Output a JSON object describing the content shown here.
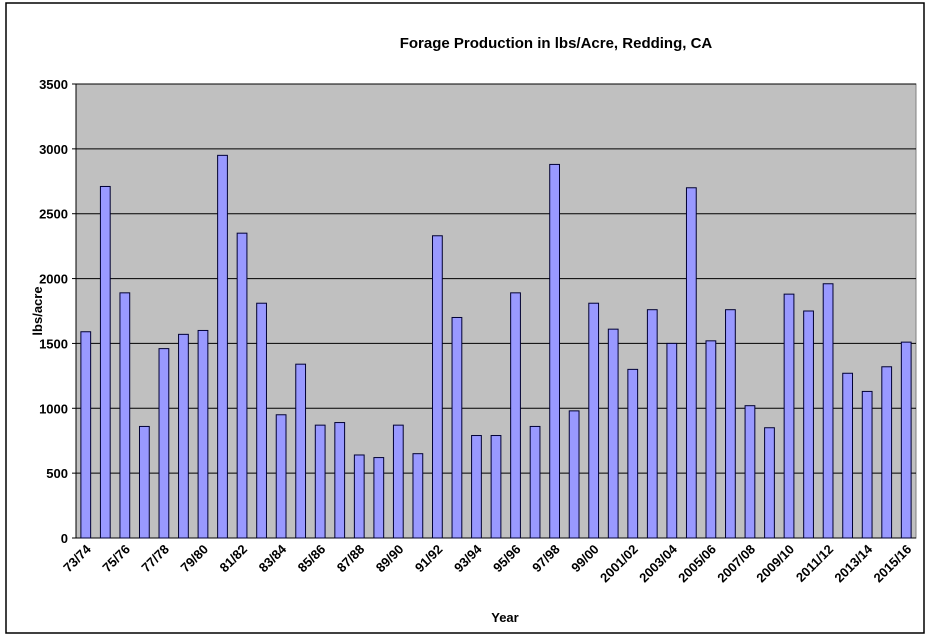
{
  "chart_data": {
    "type": "bar",
    "title": "Forage Production in lbs/Acre, Redding, CA",
    "x_label": "Year",
    "y_label": "lbs/acre",
    "categories": [
      "73/74",
      null,
      "75/76",
      null,
      "77/78",
      null,
      "79/80",
      null,
      "81/82",
      null,
      "83/84",
      null,
      "85/86",
      null,
      "87/88",
      null,
      "89/90",
      null,
      "91/92",
      null,
      "93/94",
      null,
      "95/96",
      null,
      "97/98",
      null,
      "99/00",
      null,
      "2001/02",
      null,
      "2003/04",
      null,
      "2005/06",
      null,
      "2007/08",
      null,
      "2009/10",
      null,
      "2011/12",
      null,
      "2013/14",
      null,
      "2015/16"
    ],
    "values": [
      1590,
      2710,
      1890,
      860,
      1460,
      1570,
      1600,
      2950,
      2350,
      1810,
      950,
      1340,
      870,
      890,
      640,
      620,
      870,
      650,
      2330,
      1700,
      790,
      790,
      1890,
      860,
      2880,
      980,
      1810,
      1610,
      1300,
      1760,
      1500,
      2700,
      1520,
      1760,
      1020,
      850,
      1880,
      1750,
      1960,
      1270,
      1130,
      1320,
      1510
    ],
    "color": "#9999ff",
    "ylim": [
      0,
      3500
    ],
    "yticks": [
      0,
      500,
      1000,
      1500,
      2000,
      2500,
      3000,
      3500
    ],
    "grid": true
  }
}
